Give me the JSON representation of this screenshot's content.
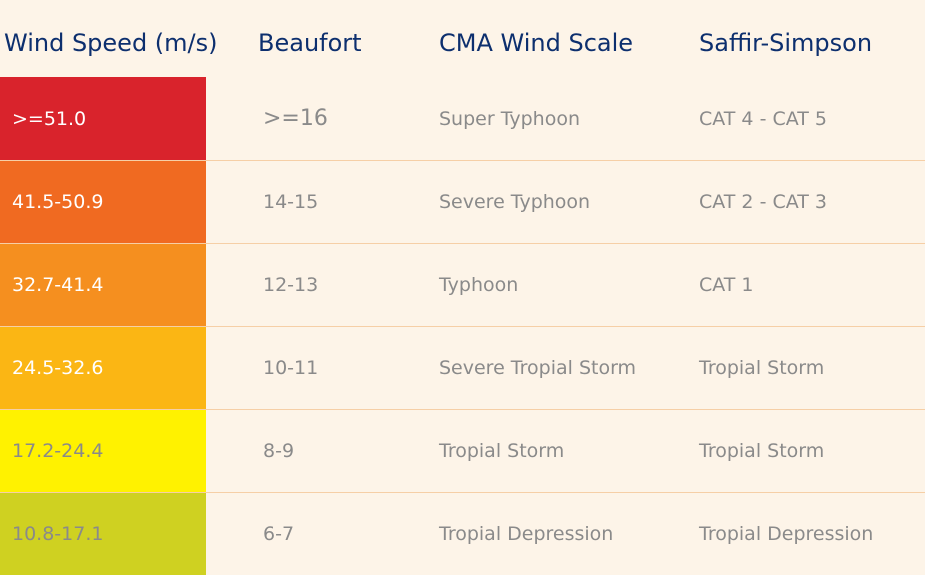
{
  "headers": [
    "Wind Speed (m/s)",
    "Beaufort",
    "CMA Wind Scale",
    "Saffir-Simpson"
  ],
  "rows": [
    {
      "speed": ">=51.0",
      "beaufort": ">=16",
      "cma": "Super Typhoon",
      "ss": "CAT 4 - CAT 5",
      "color": "#d9232c",
      "speed_color": "#ffffff"
    },
    {
      "speed": "41.5-50.9",
      "beaufort": "14-15",
      "cma": "Severe Typhoon",
      "ss": "CAT 2 - CAT 3",
      "color": "#f06a21",
      "speed_color": "#ffffff"
    },
    {
      "speed": "32.7-41.4",
      "beaufort": "12-13",
      "cma": "Typhoon",
      "ss": "CAT 1",
      "color": "#f58f1f",
      "speed_color": "#ffffff"
    },
    {
      "speed": "24.5-32.6",
      "beaufort": "10-11",
      "cma": "Severe Tropial Storm",
      "ss": "Tropial Storm",
      "color": "#fbb614",
      "speed_color": "#ffffff"
    },
    {
      "speed": "17.2-24.4",
      "beaufort": "8-9",
      "cma": "Tropial Storm",
      "ss": "Tropial Storm",
      "color": "#fff200",
      "speed_color": "#8a8a8a"
    },
    {
      "speed": "10.8-17.1",
      "beaufort": "6-7",
      "cma": "Tropial Depression",
      "ss": "Tropial Depression",
      "color": "#cfd121",
      "speed_color": "#8a8a8a"
    }
  ]
}
